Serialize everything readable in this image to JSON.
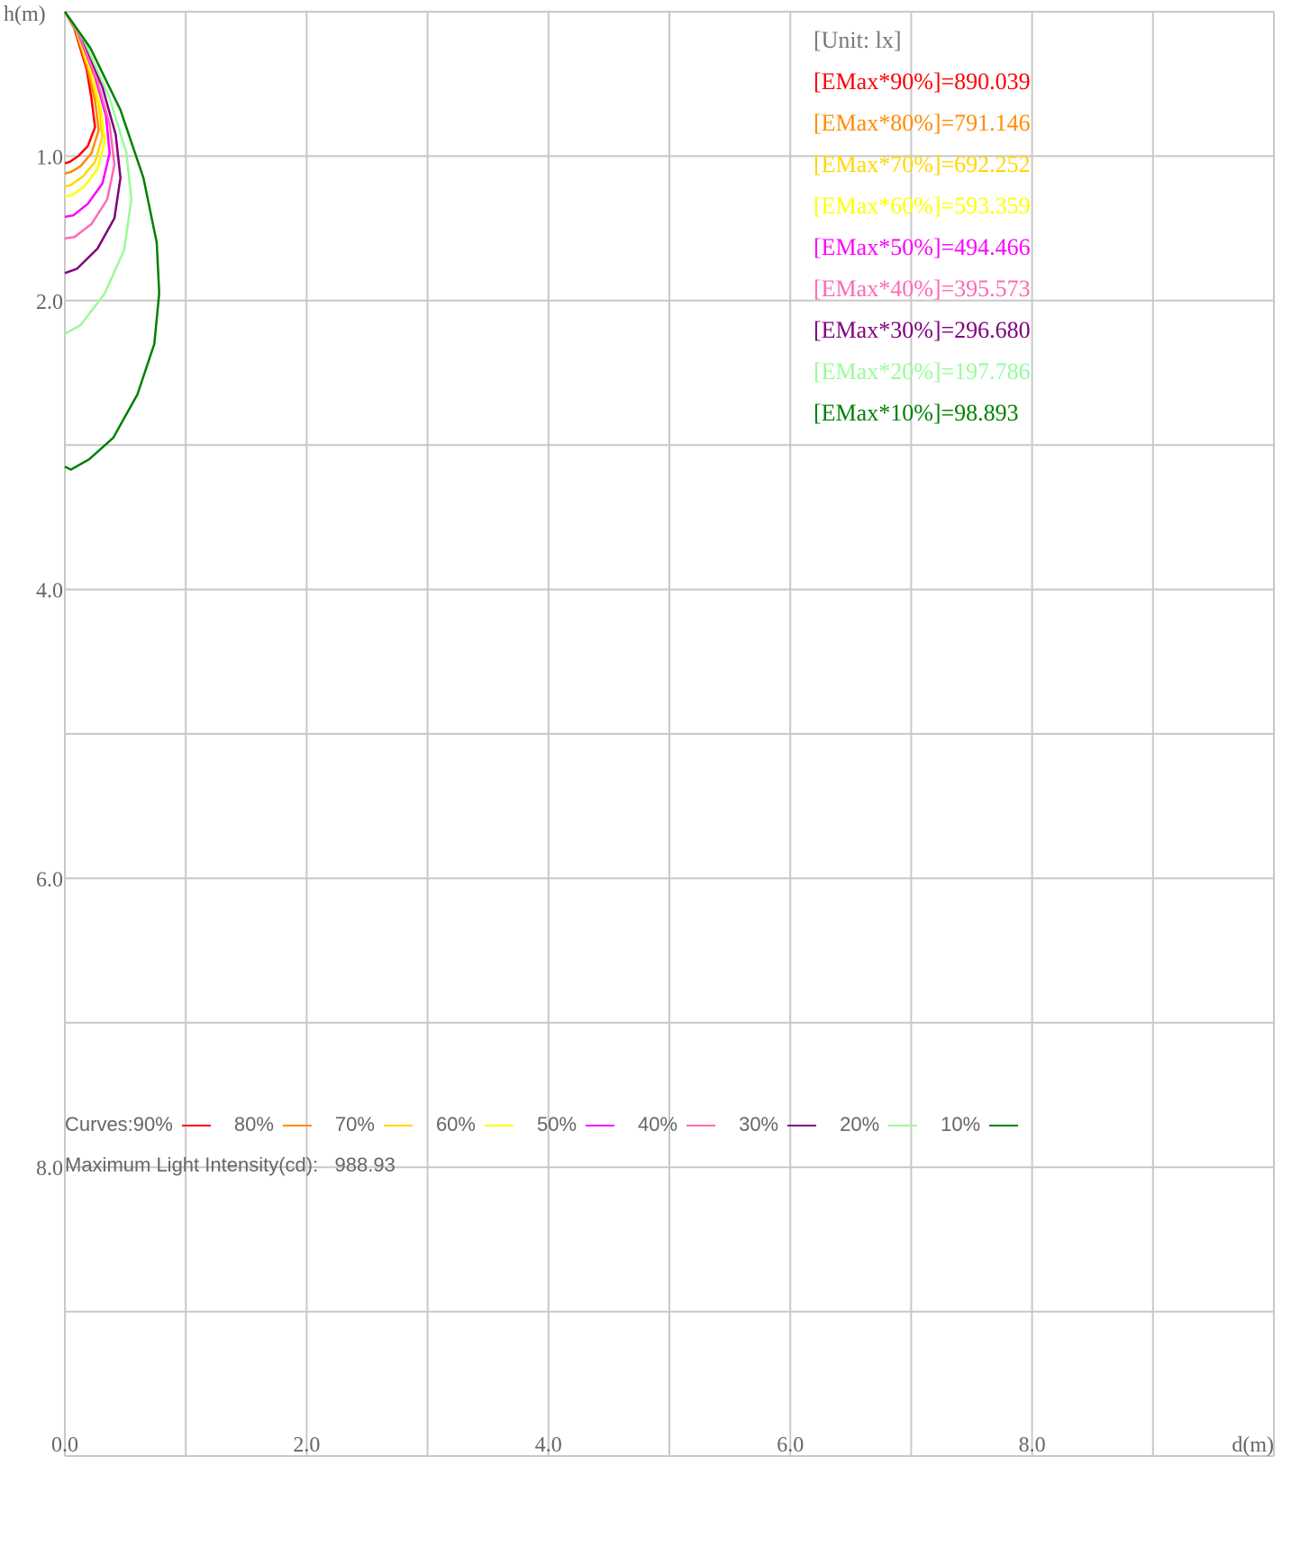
{
  "chart_data": {
    "type": "line",
    "chart_kind": "isolux-curves",
    "xlabel": "d(m)",
    "ylabel": "h(m)",
    "xlim": [
      0,
      10
    ],
    "ylim": [
      0,
      10
    ],
    "y_inverted": true,
    "x_ticks": [
      "0.0",
      "2.0",
      "4.0",
      "6.0",
      "8.0"
    ],
    "y_ticks": [
      "1.0",
      "2.0",
      "4.0",
      "6.0",
      "8.0"
    ],
    "grid": true,
    "unit_label": "[Unit: lx]",
    "legend_placement": "top-right",
    "series": [
      {
        "name": "[EMax*90%]=890.039",
        "color": "#ff0000",
        "x": [
          0,
          0.08,
          0.18,
          0.22,
          0.25,
          0.19,
          0.11,
          0.04,
          0
        ],
        "y": [
          0,
          0.12,
          0.4,
          0.6,
          0.8,
          0.93,
          1.0,
          1.04,
          1.05
        ]
      },
      {
        "name": "[EMax*80%]=791.146",
        "color": "#ff8c00",
        "x": [
          0,
          0.09,
          0.19,
          0.25,
          0.28,
          0.22,
          0.13,
          0.05,
          0
        ],
        "y": [
          0,
          0.13,
          0.4,
          0.62,
          0.82,
          0.98,
          1.07,
          1.11,
          1.12
        ]
      },
      {
        "name": "[EMax*70%]=692.252",
        "color": "#ffd700",
        "x": [
          0,
          0.1,
          0.21,
          0.28,
          0.31,
          0.25,
          0.15,
          0.05,
          0
        ],
        "y": [
          0,
          0.14,
          0.42,
          0.65,
          0.87,
          1.04,
          1.14,
          1.2,
          1.21
        ]
      },
      {
        "name": "[EMax*60%]=593.359",
        "color": "#ffff00",
        "x": [
          0,
          0.1,
          0.22,
          0.3,
          0.33,
          0.27,
          0.16,
          0.06,
          0
        ],
        "y": [
          0,
          0.14,
          0.43,
          0.68,
          0.9,
          1.09,
          1.21,
          1.27,
          1.28
        ]
      },
      {
        "name": "[EMax*50%]=494.466",
        "color": "#ff00ff",
        "x": [
          0,
          0.11,
          0.25,
          0.34,
          0.37,
          0.31,
          0.19,
          0.07,
          0
        ],
        "y": [
          0,
          0.15,
          0.45,
          0.72,
          0.98,
          1.19,
          1.33,
          1.41,
          1.42
        ]
      },
      {
        "name": "[EMax*40%]=395.573",
        "color": "#ff69b4",
        "x": [
          0,
          0.12,
          0.27,
          0.37,
          0.41,
          0.35,
          0.22,
          0.08,
          0
        ],
        "y": [
          0,
          0.16,
          0.48,
          0.78,
          1.06,
          1.3,
          1.47,
          1.56,
          1.57
        ]
      },
      {
        "name": "[EMax*30%]=296.680",
        "color": "#800080",
        "x": [
          0,
          0.14,
          0.31,
          0.42,
          0.46,
          0.41,
          0.27,
          0.1,
          0
        ],
        "y": [
          0,
          0.17,
          0.52,
          0.85,
          1.15,
          1.43,
          1.64,
          1.78,
          1.81
        ]
      },
      {
        "name": "[EMax*20%]=197.786",
        "color": "#98fb98",
        "x": [
          0,
          0.16,
          0.37,
          0.51,
          0.55,
          0.49,
          0.33,
          0.13,
          0
        ],
        "y": [
          0,
          0.2,
          0.6,
          0.98,
          1.3,
          1.65,
          1.95,
          2.17,
          2.23
        ]
      },
      {
        "name": "[EMax*10%]=98.893",
        "color": "#008000",
        "x": [
          0,
          0.21,
          0.46,
          0.65,
          0.76,
          0.78,
          0.74,
          0.6,
          0.4,
          0.2,
          0.05,
          0
        ],
        "y": [
          0,
          0.25,
          0.68,
          1.15,
          1.6,
          1.95,
          2.3,
          2.65,
          2.95,
          3.1,
          3.17,
          3.15
        ]
      }
    ]
  },
  "footer": {
    "curves_prefix": "Curves:",
    "curve_labels": [
      "90%",
      "80%",
      "70%",
      "60%",
      "50%",
      "40%",
      "30%",
      "20%",
      "10%"
    ],
    "max_label": "Maximum Light Intensity(cd):",
    "max_value": "988.93"
  }
}
